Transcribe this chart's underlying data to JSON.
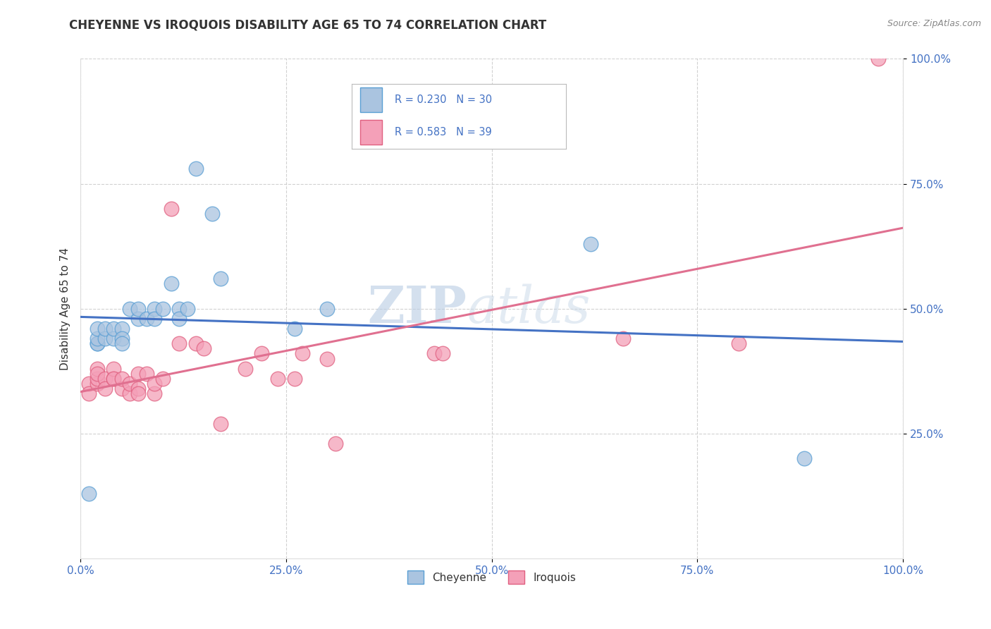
{
  "title": "CHEYENNE VS IROQUOIS DISABILITY AGE 65 TO 74 CORRELATION CHART",
  "source_text": "Source: ZipAtlas.com",
  "xlabel": "",
  "ylabel": "Disability Age 65 to 74",
  "xlim": [
    0.0,
    1.0
  ],
  "ylim": [
    0.0,
    1.0
  ],
  "xticks": [
    0.0,
    0.25,
    0.5,
    0.75,
    1.0
  ],
  "yticks": [
    0.25,
    0.5,
    0.75,
    1.0
  ],
  "xticklabels": [
    "0.0%",
    "25.0%",
    "50.0%",
    "75.0%",
    "100.0%"
  ],
  "yticklabels": [
    "25.0%",
    "50.0%",
    "75.0%",
    "100.0%"
  ],
  "cheyenne_color": "#aac4e0",
  "cheyenne_edge": "#5a9fd4",
  "iroquois_color": "#f4a0b8",
  "iroquois_edge": "#e06080",
  "trend_blue": "#4472c4",
  "trend_pink": "#e07090",
  "legend_r_cheyenne": "R = 0.230",
  "legend_n_cheyenne": "N = 30",
  "legend_r_iroquois": "R = 0.583",
  "legend_n_iroquois": "N = 39",
  "watermark_zip": "ZIP",
  "watermark_atlas": "atlas",
  "cheyenne_x": [
    0.01,
    0.02,
    0.02,
    0.02,
    0.02,
    0.03,
    0.03,
    0.04,
    0.04,
    0.05,
    0.05,
    0.05,
    0.06,
    0.07,
    0.07,
    0.08,
    0.09,
    0.09,
    0.1,
    0.11,
    0.12,
    0.12,
    0.13,
    0.14,
    0.16,
    0.17,
    0.26,
    0.3,
    0.62,
    0.88
  ],
  "cheyenne_y": [
    0.13,
    0.43,
    0.43,
    0.44,
    0.46,
    0.44,
    0.46,
    0.44,
    0.46,
    0.46,
    0.44,
    0.43,
    0.5,
    0.48,
    0.5,
    0.48,
    0.5,
    0.48,
    0.5,
    0.55,
    0.5,
    0.48,
    0.5,
    0.78,
    0.69,
    0.56,
    0.46,
    0.5,
    0.63,
    0.2
  ],
  "iroquois_x": [
    0.01,
    0.01,
    0.02,
    0.02,
    0.02,
    0.02,
    0.03,
    0.03,
    0.04,
    0.04,
    0.04,
    0.05,
    0.05,
    0.06,
    0.06,
    0.07,
    0.07,
    0.07,
    0.08,
    0.09,
    0.09,
    0.1,
    0.11,
    0.12,
    0.14,
    0.15,
    0.17,
    0.2,
    0.22,
    0.24,
    0.26,
    0.27,
    0.3,
    0.31,
    0.43,
    0.44,
    0.66,
    0.8,
    0.97
  ],
  "iroquois_y": [
    0.35,
    0.33,
    0.35,
    0.36,
    0.38,
    0.37,
    0.36,
    0.34,
    0.36,
    0.38,
    0.36,
    0.34,
    0.36,
    0.33,
    0.35,
    0.37,
    0.34,
    0.33,
    0.37,
    0.33,
    0.35,
    0.36,
    0.7,
    0.43,
    0.43,
    0.42,
    0.27,
    0.38,
    0.41,
    0.36,
    0.36,
    0.41,
    0.4,
    0.23,
    0.41,
    0.41,
    0.44,
    0.43,
    1.0
  ],
  "background_color": "#ffffff",
  "grid_color": "#cccccc",
  "title_color": "#333333",
  "axis_label_color": "#333333"
}
